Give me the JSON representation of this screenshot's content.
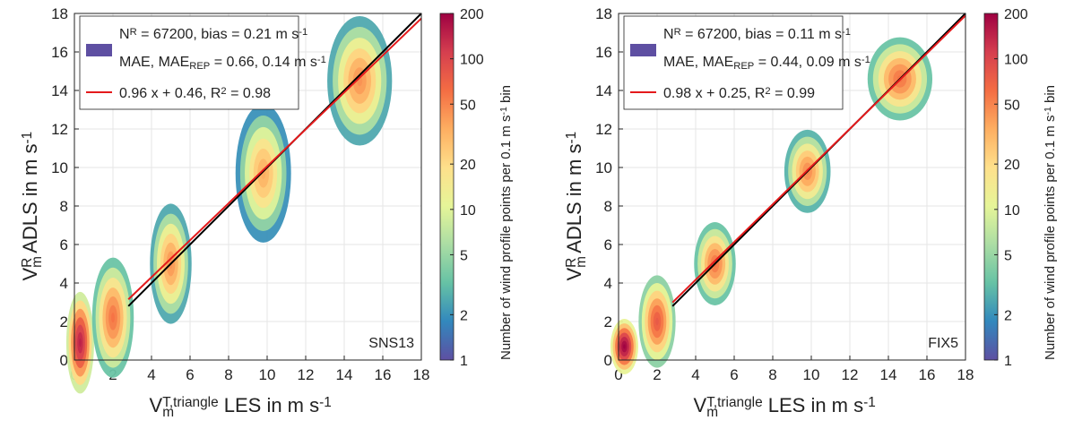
{
  "chart_data": [
    {
      "type": "histogram2d",
      "panel_label": "SNS13",
      "xlim": [
        0,
        18
      ],
      "ylim": [
        0,
        18
      ],
      "xticks": [
        0,
        2,
        4,
        6,
        8,
        10,
        12,
        14,
        16,
        18
      ],
      "yticks": [
        0,
        2,
        4,
        6,
        8,
        10,
        12,
        14,
        16,
        18
      ],
      "grid": true,
      "x_label": [
        "V",
        "m",
        "T,triangle",
        " LES in m s",
        "-1"
      ],
      "y_label": [
        "V",
        "m",
        "R",
        " ADLS in m s",
        "-1"
      ],
      "legend": [
        {
          "color": "#5e4fa2",
          "lines": [
            [
              "N",
              "R",
              " = 67200, bias = 0.21 m s",
              "-1"
            ],
            [
              "MAE, MAE",
              "REP",
              " = 0.66, 0.14 m s",
              "-1"
            ]
          ]
        },
        {
          "color": "#e41a1c",
          "lines": [
            [
              "0.96 x + 0.46, R",
              "2",
              " = 0.98"
            ]
          ]
        }
      ],
      "lines": [
        {
          "color": "#000000",
          "x": [
            2.8,
            18
          ],
          "y": [
            2.8,
            18
          ]
        },
        {
          "color": "#e41a1c",
          "x": [
            2.8,
            18
          ],
          "y": [
            3.15,
            17.74
          ]
        }
      ],
      "clusters": [
        {
          "x": 0.3,
          "y": 0.9,
          "sx": 0.3,
          "sy": 1.1,
          "peak": 150
        },
        {
          "x": 2.0,
          "y": 2.2,
          "sx": 0.45,
          "sy": 1.3,
          "peak": 60
        },
        {
          "x": 5.0,
          "y": 5.0,
          "sx": 0.45,
          "sy": 1.3,
          "peak": 45
        },
        {
          "x": 9.8,
          "y": 9.7,
          "sx": 0.6,
          "sy": 1.5,
          "peak": 35
        },
        {
          "x": 14.8,
          "y": 14.5,
          "sx": 0.7,
          "sy": 1.4,
          "peak": 45
        }
      ],
      "colorbar": {
        "scale": "log",
        "lim": [
          1,
          200
        ],
        "ticks": [
          1,
          2,
          5,
          10,
          20,
          50,
          100,
          200
        ],
        "colors": [
          "#5e4fa2",
          "#3288bd",
          "#66c2a5",
          "#abdda4",
          "#e6f598",
          "#fee08b",
          "#fdae61",
          "#f46d43",
          "#d53e4f",
          "#9e0142"
        ],
        "label": [
          "Number of wind profile points per 0.1 m s",
          "-1",
          " bin"
        ]
      }
    },
    {
      "type": "histogram2d",
      "panel_label": "FIX5",
      "xlim": [
        0,
        18
      ],
      "ylim": [
        0,
        18
      ],
      "xticks": [
        0,
        2,
        4,
        6,
        8,
        10,
        12,
        14,
        16,
        18
      ],
      "yticks": [
        0,
        2,
        4,
        6,
        8,
        10,
        12,
        14,
        16,
        18
      ],
      "grid": true,
      "x_label": [
        "V",
        "m",
        "T,triangle",
        " LES in m s",
        "-1"
      ],
      "y_label": [
        "V",
        "m",
        "R",
        " ADLS in m s",
        "-1"
      ],
      "legend": [
        {
          "color": "#5e4fa2",
          "lines": [
            [
              "N",
              "R",
              " = 67200, bias = 0.11 m s",
              "-1"
            ],
            [
              "MAE, MAE",
              "REP",
              " = 0.44, 0.09 m s",
              "-1"
            ]
          ]
        },
        {
          "color": "#e41a1c",
          "lines": [
            [
              "0.98 x + 0.25, R",
              "2",
              " = 0.99"
            ]
          ]
        }
      ],
      "lines": [
        {
          "color": "#000000",
          "x": [
            2.8,
            18
          ],
          "y": [
            2.8,
            18
          ]
        },
        {
          "color": "#e41a1c",
          "x": [
            2.8,
            18
          ],
          "y": [
            2.99,
            17.89
          ]
        }
      ],
      "clusters": [
        {
          "x": 0.3,
          "y": 0.7,
          "sx": 0.3,
          "sy": 0.6,
          "peak": 200
        },
        {
          "x": 2.0,
          "y": 2.0,
          "sx": 0.4,
          "sy": 1.0,
          "peak": 80
        },
        {
          "x": 5.0,
          "y": 5.0,
          "sx": 0.45,
          "sy": 0.9,
          "peak": 60
        },
        {
          "x": 9.8,
          "y": 9.8,
          "sx": 0.5,
          "sy": 0.9,
          "peak": 50
        },
        {
          "x": 14.6,
          "y": 14.6,
          "sx": 0.7,
          "sy": 0.9,
          "peak": 60
        }
      ],
      "colorbar": {
        "scale": "log",
        "lim": [
          1,
          200
        ],
        "ticks": [
          1,
          2,
          5,
          10,
          20,
          50,
          100,
          200
        ],
        "colors": [
          "#5e4fa2",
          "#3288bd",
          "#66c2a5",
          "#abdda4",
          "#e6f598",
          "#fee08b",
          "#fdae61",
          "#f46d43",
          "#d53e4f",
          "#9e0142"
        ],
        "label": [
          "Number of wind profile points per 0.1 m s",
          "-1",
          " bin"
        ]
      }
    }
  ]
}
